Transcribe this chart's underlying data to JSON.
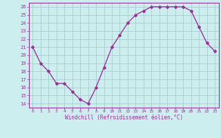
{
  "x": [
    0,
    1,
    2,
    3,
    4,
    5,
    6,
    7,
    8,
    9,
    10,
    11,
    12,
    13,
    14,
    15,
    16,
    17,
    18,
    19,
    20,
    21,
    22,
    23
  ],
  "y": [
    21,
    19,
    18,
    16.5,
    16.5,
    15.5,
    14.5,
    14,
    16,
    18.5,
    21,
    22.5,
    24,
    25,
    25.5,
    26,
    26,
    26,
    26,
    26,
    25.5,
    23.5,
    21.5,
    20.5
  ],
  "line_color": "#993399",
  "marker": "D",
  "marker_size": 2,
  "bg_color": "#cceeee",
  "grid_color": "#aacccc",
  "xlabel": "Windchill (Refroidissement éolien,°C)",
  "xlabel_color": "#993399",
  "tick_label_color": "#993399",
  "ylim": [
    13.5,
    26.5
  ],
  "yticks": [
    14,
    15,
    16,
    17,
    18,
    19,
    20,
    21,
    22,
    23,
    24,
    25,
    26
  ],
  "xticks": [
    0,
    1,
    2,
    3,
    4,
    5,
    6,
    7,
    8,
    9,
    10,
    11,
    12,
    13,
    14,
    15,
    16,
    17,
    18,
    19,
    20,
    21,
    22,
    23
  ],
  "xtick_labels": [
    "0",
    "1",
    "2",
    "3",
    "4",
    "5",
    "6",
    "7",
    "8",
    "9",
    "10",
    "11",
    "12",
    "13",
    "14",
    "15",
    "16",
    "17",
    "18",
    "19",
    "20",
    "21",
    "22",
    "23"
  ],
  "line_width": 1.0,
  "axis_color": "#993399",
  "xlim": [
    -0.5,
    23.5
  ]
}
